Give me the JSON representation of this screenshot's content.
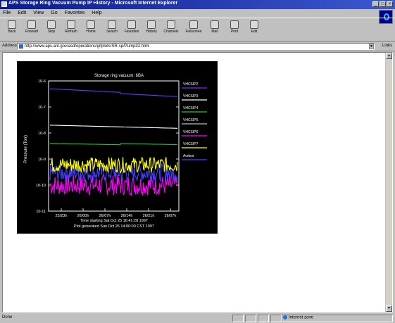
{
  "window": {
    "title": "APS Storage Ring Vacuum Pump IP History - Microsoft Internet Explorer",
    "min_symbol": "_",
    "max_symbol": "□",
    "close_symbol": "×"
  },
  "menu": [
    "File",
    "Edit",
    "View",
    "Go",
    "Favorites",
    "Help"
  ],
  "toolbar": {
    "buttons": [
      "Back",
      "Forward",
      "Stop",
      "Refresh",
      "Home",
      "Search",
      "Favorites",
      "History",
      "Channels",
      "Fullscreen",
      "Mail",
      "Print",
      "Edit"
    ]
  },
  "address": {
    "label": "Address",
    "url": "http://www.aps.anl.gov/asd/operations/gifplots/SR-sp/Pump32.html",
    "links_label": "Links"
  },
  "statusbar": {
    "left_text": "Done",
    "zone_text": "Internet zone"
  },
  "chart_data": {
    "type": "line",
    "title": "Storage ring vacuum: 6BA",
    "ylabel": "Pressure (Torr)",
    "yscale": "log",
    "yticks": [
      "10-6",
      "10-7",
      "10-8",
      "10-9",
      "10-10",
      "10-11"
    ],
    "ylim": [
      1e-11,
      1e-06
    ],
    "xticks": [
      "25/23h",
      "26/00h",
      "26/07h",
      "26/14h",
      "26/21h",
      "26/07h"
    ],
    "footer_line1": "Time starting Sat Oct 25 16:41:28 1997",
    "footer_line2": "Plot generated Sun Oct 26 14:00:00 CST 1997",
    "background": "#000000",
    "series": [
      {
        "name": "VHCSIP2",
        "color": "#7a2cff",
        "approx_value": "5e-7 decreasing to 3e-7"
      },
      {
        "name": "VHCSIP3",
        "color": "#ffffff",
        "approx_value": "~2e-8"
      },
      {
        "name": "VHCSIP4",
        "color": "#22cc22",
        "approx_value": "~4e-9"
      },
      {
        "name": "VHCSIP5",
        "color": "#c0c0c0",
        "approx_value": "flat"
      },
      {
        "name": "VHCSIP6",
        "color": "#ff00ff",
        "approx_value": "noisy ~1e-10"
      },
      {
        "name": "VHCSIP7",
        "color": "#ffff00",
        "approx_value": "noisy ~5e-10"
      },
      {
        "name": "Avrtest",
        "color": "#4040ff",
        "approx_value": "noisy ~3e-10"
      }
    ]
  }
}
